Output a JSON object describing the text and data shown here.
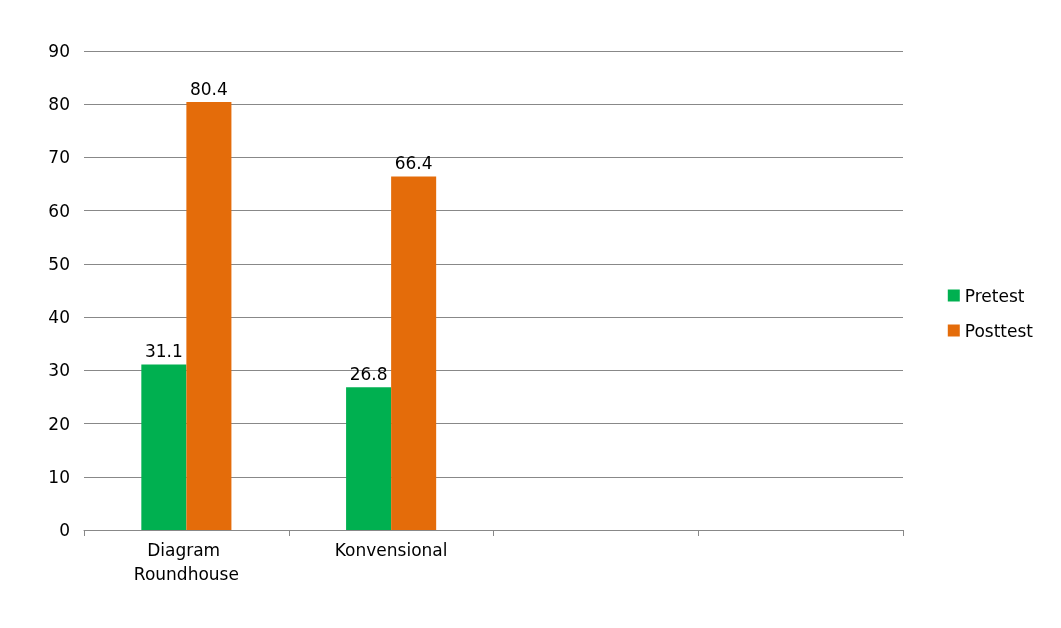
{
  "chart_data": {
    "type": "bar",
    "categories": [
      "Diagram Roundhouse",
      "Konvensional",
      null,
      null
    ],
    "series": [
      {
        "name": "Pretest",
        "color": "#00b050",
        "values": [
          31.1,
          26.8,
          null,
          null
        ]
      },
      {
        "name": "Posttest",
        "color": "#e46c0a",
        "values": [
          80.4,
          66.4,
          null,
          null
        ]
      }
    ],
    "ylim": [
      0,
      90
    ],
    "yticks": [
      0,
      10,
      20,
      30,
      40,
      50,
      60,
      70,
      80,
      90
    ],
    "grid": "y",
    "legend": "right",
    "data_labels": true
  }
}
